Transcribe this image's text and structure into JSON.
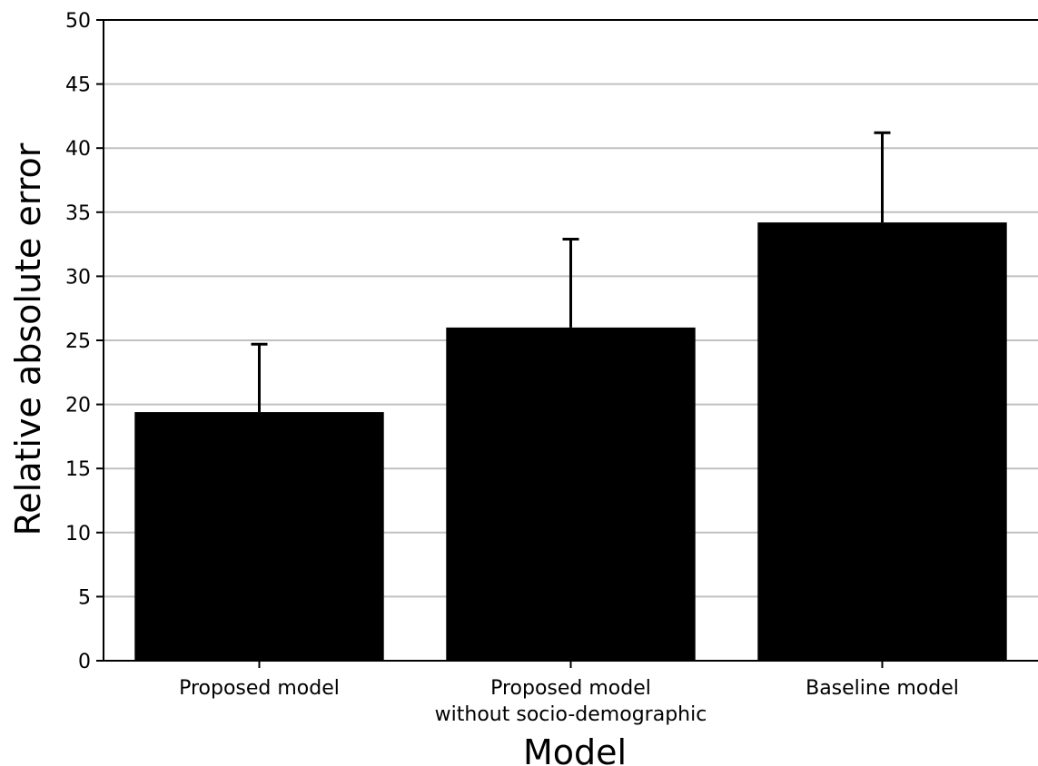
{
  "chart_data": {
    "type": "bar",
    "title": "",
    "xlabel": "Model",
    "ylabel": "Relative absolute error",
    "categories": [
      [
        "Proposed model"
      ],
      [
        "Proposed model",
        "without socio-demographic"
      ],
      [
        "Baseline model"
      ]
    ],
    "values": [
      19.4,
      26.0,
      34.2
    ],
    "error_upper": [
      24.7,
      32.9,
      41.2
    ],
    "ylim": [
      0,
      50
    ],
    "yticks": [
      0,
      5,
      10,
      15,
      20,
      25,
      30,
      35,
      40,
      45,
      50
    ],
    "grid": "horizontal",
    "colors": {
      "bar": "#000000",
      "grid": "#c0c0c0",
      "axis": "#000000"
    }
  }
}
